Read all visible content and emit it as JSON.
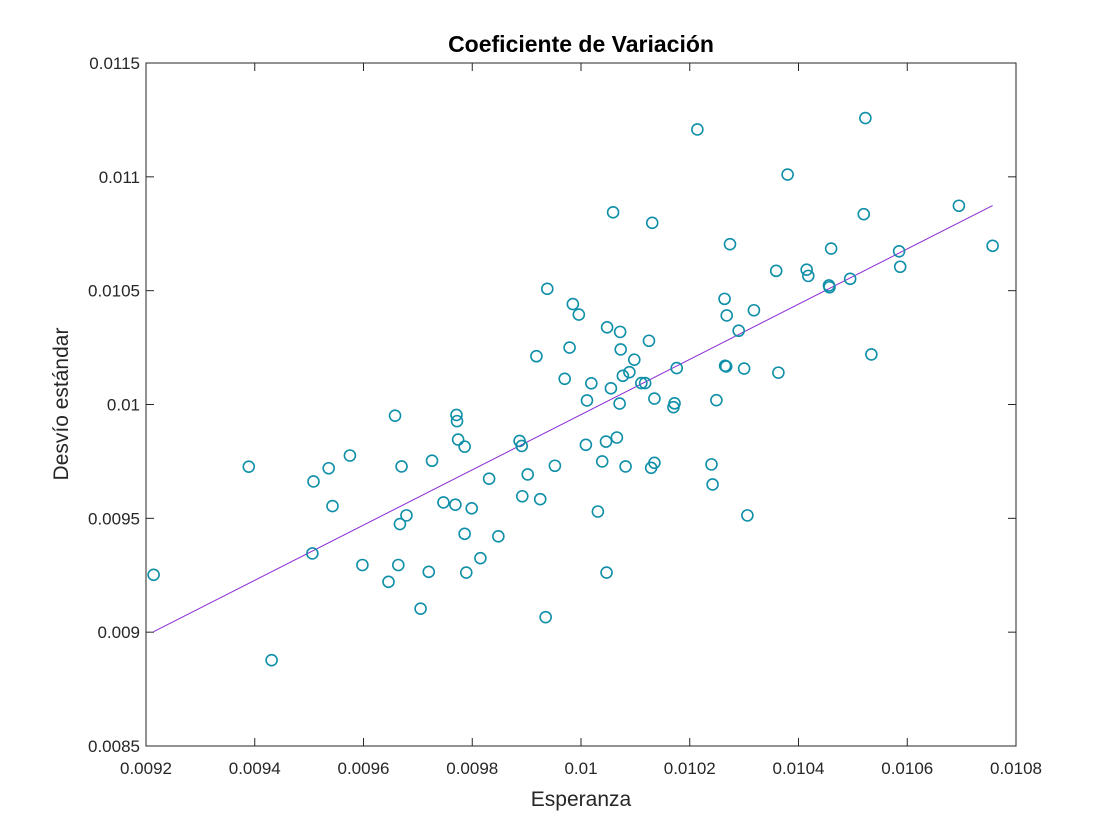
{
  "chart_data": {
    "type": "scatter",
    "title": "Coeficiente de Variación",
    "xlabel": "Esperanza",
    "ylabel": "Desvío estándar",
    "xlim": [
      0.0092,
      0.0108
    ],
    "ylim": [
      0.0085,
      0.0115
    ],
    "xticks": [
      "0.0092",
      "0.0094",
      "0.0096",
      "0.0098",
      "0.01",
      "0.0102",
      "0.0104",
      "0.0106",
      "0.0108"
    ],
    "yticks": [
      "0.0085",
      "0.009",
      "0.0095",
      "0.01",
      "0.0105",
      "0.011",
      "0.0115"
    ],
    "grid": false,
    "legend": "none",
    "marker_color": "#0f8fa8",
    "line_color": "#8b2ad4",
    "series": [
      {
        "kind": "scatter",
        "points": [
          [
            0.009214,
            0.009252
          ],
          [
            0.009389,
            0.009727
          ],
          [
            0.009431,
            0.008877
          ],
          [
            0.009506,
            0.009346
          ],
          [
            0.009508,
            0.009662
          ],
          [
            0.009536,
            0.00972
          ],
          [
            0.009543,
            0.009554
          ],
          [
            0.009575,
            0.009776
          ],
          [
            0.009598,
            0.009295
          ],
          [
            0.009646,
            0.009221
          ],
          [
            0.009658,
            0.009951
          ],
          [
            0.009664,
            0.009295
          ],
          [
            0.009667,
            0.009475
          ],
          [
            0.00967,
            0.009728
          ],
          [
            0.009679,
            0.009513
          ],
          [
            0.009705,
            0.009103
          ],
          [
            0.00972,
            0.009265
          ],
          [
            0.009726,
            0.009753
          ],
          [
            0.009747,
            0.00957
          ],
          [
            0.009769,
            0.00956
          ],
          [
            0.009771,
            0.009954
          ],
          [
            0.009772,
            0.009927
          ],
          [
            0.009774,
            0.009846
          ],
          [
            0.009786,
            0.009432
          ],
          [
            0.009786,
            0.009815
          ],
          [
            0.009789,
            0.009262
          ],
          [
            0.009799,
            0.009544
          ],
          [
            0.009815,
            0.009325
          ],
          [
            0.009831,
            0.009674
          ],
          [
            0.009848,
            0.009421
          ],
          [
            0.009887,
            0.00984
          ],
          [
            0.009891,
            0.009818
          ],
          [
            0.009892,
            0.009597
          ],
          [
            0.009902,
            0.009693
          ],
          [
            0.009918,
            0.010212
          ],
          [
            0.009925,
            0.009584
          ],
          [
            0.009935,
            0.009066
          ],
          [
            0.009938,
            0.010508
          ],
          [
            0.009952,
            0.009731
          ],
          [
            0.00997,
            0.010113
          ],
          [
            0.009979,
            0.01025
          ],
          [
            0.009985,
            0.010441
          ],
          [
            0.009996,
            0.010395
          ],
          [
            0.010009,
            0.009823
          ],
          [
            0.010011,
            0.010018
          ],
          [
            0.010019,
            0.010093
          ],
          [
            0.010031,
            0.00953
          ],
          [
            0.010039,
            0.00975
          ],
          [
            0.010046,
            0.009837
          ],
          [
            0.010047,
            0.009262
          ],
          [
            0.010048,
            0.010339
          ],
          [
            0.010055,
            0.010071
          ],
          [
            0.010059,
            0.010844
          ],
          [
            0.010066,
            0.009855
          ],
          [
            0.010071,
            0.010004
          ],
          [
            0.010072,
            0.010319
          ],
          [
            0.010073,
            0.010242
          ],
          [
            0.010077,
            0.010126
          ],
          [
            0.010082,
            0.009728
          ],
          [
            0.010089,
            0.010142
          ],
          [
            0.010098,
            0.010197
          ],
          [
            0.010111,
            0.010094
          ],
          [
            0.010118,
            0.010094
          ],
          [
            0.010125,
            0.01028
          ],
          [
            0.010129,
            0.009722
          ],
          [
            0.010131,
            0.010798
          ],
          [
            0.010135,
            0.010026
          ],
          [
            0.010135,
            0.009744
          ],
          [
            0.01017,
            0.009988
          ],
          [
            0.010172,
            0.010005
          ],
          [
            0.010176,
            0.01016
          ],
          [
            0.010214,
            0.011208
          ],
          [
            0.01024,
            0.009737
          ],
          [
            0.010242,
            0.009649
          ],
          [
            0.010249,
            0.010019
          ],
          [
            0.010264,
            0.010464
          ],
          [
            0.010265,
            0.01017
          ],
          [
            0.010267,
            0.010167
          ],
          [
            0.010268,
            0.010391
          ],
          [
            0.010274,
            0.010704
          ],
          [
            0.01029,
            0.010324
          ],
          [
            0.0103,
            0.010158
          ],
          [
            0.010306,
            0.009513
          ],
          [
            0.010318,
            0.010414
          ],
          [
            0.010359,
            0.010587
          ],
          [
            0.010363,
            0.01014
          ],
          [
            0.01038,
            0.01101
          ],
          [
            0.010415,
            0.010592
          ],
          [
            0.010418,
            0.010565
          ],
          [
            0.010456,
            0.010523
          ],
          [
            0.010457,
            0.010515
          ],
          [
            0.01046,
            0.010685
          ],
          [
            0.010495,
            0.010552
          ],
          [
            0.01052,
            0.010836
          ],
          [
            0.010523,
            0.011258
          ],
          [
            0.010534,
            0.01022
          ],
          [
            0.010585,
            0.010673
          ],
          [
            0.010587,
            0.010605
          ],
          [
            0.010695,
            0.010873
          ],
          [
            0.010757,
            0.010697
          ]
        ]
      },
      {
        "kind": "line",
        "points": [
          [
            0.009214,
            0.009002
          ],
          [
            0.010757,
            0.010874
          ]
        ]
      }
    ]
  }
}
